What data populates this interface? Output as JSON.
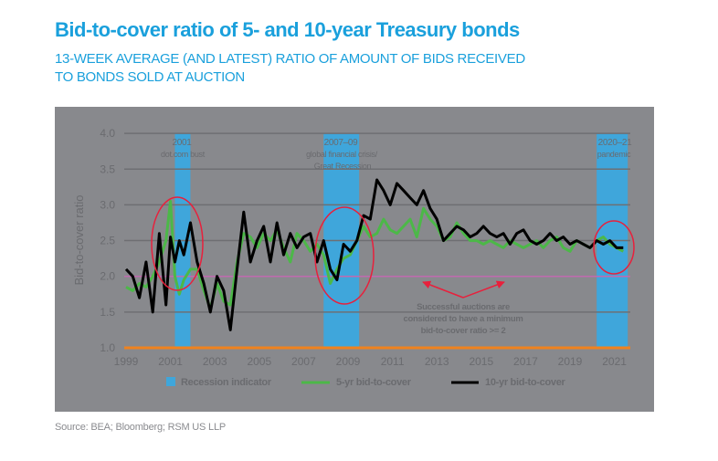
{
  "header": {
    "title": "Bid-to-cover ratio of 5- and 10-year Treasury bonds",
    "subtitle_line1": "13-WEEK AVERAGE (AND LATEST) RATIO OF AMOUNT OF BIDS RECEIVED",
    "subtitle_line2": "TO BONDS SOLD AT AUCTION"
  },
  "footer": {
    "source": "Source: BEA; Bloomberg; RSM US LLP"
  },
  "colors": {
    "panel_bg": "#88898d",
    "recession": "#3fa6db",
    "five_yr": "#4cb848",
    "ten_yr": "#000000",
    "threshold": "#c06ab0",
    "baseline": "#f0821e",
    "ellipse": "#e8203c",
    "title": "#1aa0dc"
  },
  "annotations": {
    "recession_2001_line1": "2001",
    "recession_2001_line2": "dot.com bust",
    "recession_2008_line1": "2007–09",
    "recession_2008_line2": "global financial crisis/",
    "recession_2008_line3": "Great Recession",
    "recession_2020_line1": "2020–21",
    "recession_2020_line2": "pandemic",
    "threshold_note_line1": "Successful auctions are",
    "threshold_note_line2": "considered to have a minimum",
    "threshold_note_line3": "bid-to-cover ratio >= 2"
  },
  "chart_data": {
    "type": "line",
    "title": "Bid-to-cover ratio of 5- and 10-year Treasury bonds",
    "subtitle": "13-week average (and latest) ratio of amount of bids received to bonds sold at auction",
    "xlabel": "",
    "ylabel": "Bid-to-cover ratio",
    "ylim": [
      1.0,
      4.0
    ],
    "yticks": [
      "1.0",
      "1.5",
      "2.0",
      "2.5",
      "3.0",
      "3.5",
      "4.0"
    ],
    "xticks": [
      "1999",
      "2001",
      "2003",
      "2005",
      "2007",
      "2009",
      "2011",
      "2013",
      "2015",
      "2017",
      "2019",
      "2021"
    ],
    "xlim": [
      1999,
      2021.7
    ],
    "grid": true,
    "legend_position": "bottom",
    "legend": [
      "Recession indicator",
      "5-yr bid-to-cover",
      "10-yr bid-to-cover"
    ],
    "recessions": [
      {
        "label": "2001 dot.com bust",
        "start": 2001.2,
        "end": 2001.9
      },
      {
        "label": "2007–09 global financial crisis/Great Recession",
        "start": 2007.9,
        "end": 2009.5
      },
      {
        "label": "2020–21 pandemic",
        "start": 2020.2,
        "end": 2021.6
      }
    ],
    "reference_lines": [
      {
        "label": "Minimum successful bid-to-cover ratio",
        "y": 2.0
      }
    ],
    "series": [
      {
        "name": "5-yr bid-to-cover",
        "x": [
          1999.0,
          1999.3,
          1999.6,
          1999.9,
          2000.2,
          2000.5,
          2000.8,
          2001.0,
          2001.2,
          2001.4,
          2001.6,
          2001.9,
          2002.2,
          2002.5,
          2002.8,
          2003.1,
          2003.4,
          2003.7,
          2004.0,
          2004.3,
          2004.6,
          2004.9,
          2005.2,
          2005.5,
          2005.8,
          2006.1,
          2006.4,
          2006.7,
          2007.0,
          2007.3,
          2007.6,
          2007.9,
          2008.2,
          2008.5,
          2008.8,
          2009.1,
          2009.4,
          2009.7,
          2010.0,
          2010.3,
          2010.6,
          2010.9,
          2011.2,
          2011.5,
          2011.8,
          2012.1,
          2012.4,
          2012.7,
          2013.0,
          2013.3,
          2013.6,
          2013.9,
          2014.2,
          2014.5,
          2014.8,
          2015.1,
          2015.4,
          2015.7,
          2016.0,
          2016.3,
          2016.6,
          2016.9,
          2017.2,
          2017.5,
          2017.8,
          2018.1,
          2018.4,
          2018.7,
          2019.0,
          2019.3,
          2019.6,
          2019.9,
          2020.2,
          2020.5,
          2020.8,
          2021.1,
          2021.4
        ],
        "values": [
          1.85,
          1.8,
          1.9,
          1.85,
          2.0,
          2.2,
          2.5,
          3.05,
          2.0,
          1.75,
          1.95,
          2.1,
          2.1,
          1.8,
          1.55,
          1.9,
          1.65,
          1.6,
          2.2,
          2.6,
          2.55,
          2.4,
          2.6,
          2.5,
          2.65,
          2.4,
          2.2,
          2.6,
          2.5,
          2.35,
          2.45,
          2.3,
          1.9,
          2.1,
          2.25,
          2.3,
          2.5,
          2.7,
          2.55,
          2.6,
          2.8,
          2.65,
          2.6,
          2.7,
          2.8,
          2.55,
          2.95,
          2.8,
          2.7,
          2.5,
          2.55,
          2.75,
          2.6,
          2.5,
          2.5,
          2.45,
          2.5,
          2.45,
          2.4,
          2.5,
          2.45,
          2.4,
          2.45,
          2.5,
          2.4,
          2.5,
          2.55,
          2.4,
          2.35,
          2.5,
          2.45,
          2.4,
          2.5,
          2.55,
          2.45,
          2.4,
          2.35
        ]
      },
      {
        "name": "10-yr bid-to-cover",
        "x": [
          1999.0,
          1999.3,
          1999.6,
          1999.9,
          2000.2,
          2000.5,
          2000.8,
          2001.0,
          2001.2,
          2001.4,
          2001.6,
          2001.9,
          2002.2,
          2002.5,
          2002.8,
          2003.1,
          2003.4,
          2003.7,
          2004.0,
          2004.3,
          2004.6,
          2004.9,
          2005.2,
          2005.5,
          2005.8,
          2006.1,
          2006.4,
          2006.7,
          2007.0,
          2007.3,
          2007.6,
          2007.9,
          2008.2,
          2008.5,
          2008.8,
          2009.1,
          2009.4,
          2009.7,
          2010.0,
          2010.3,
          2010.6,
          2010.9,
          2011.2,
          2011.5,
          2011.8,
          2012.1,
          2012.4,
          2012.7,
          2013.0,
          2013.3,
          2013.6,
          2013.9,
          2014.2,
          2014.5,
          2014.8,
          2015.1,
          2015.4,
          2015.7,
          2016.0,
          2016.3,
          2016.6,
          2016.9,
          2017.2,
          2017.5,
          2017.8,
          2018.1,
          2018.4,
          2018.7,
          2019.0,
          2019.3,
          2019.6,
          2019.9,
          2020.2,
          2020.5,
          2020.8,
          2021.1,
          2021.4
        ],
        "values": [
          2.1,
          2.0,
          1.7,
          2.2,
          1.5,
          2.6,
          1.6,
          2.55,
          2.2,
          2.5,
          2.3,
          2.75,
          2.2,
          1.9,
          1.5,
          2.0,
          1.8,
          1.25,
          2.1,
          2.9,
          2.2,
          2.5,
          2.7,
          2.2,
          2.75,
          2.3,
          2.6,
          2.4,
          2.55,
          2.6,
          2.2,
          2.5,
          2.1,
          1.95,
          2.45,
          2.35,
          2.5,
          2.85,
          2.8,
          3.35,
          3.2,
          3.0,
          3.3,
          3.2,
          3.1,
          3.0,
          3.2,
          2.95,
          2.8,
          2.5,
          2.6,
          2.7,
          2.65,
          2.55,
          2.6,
          2.7,
          2.6,
          2.55,
          2.6,
          2.45,
          2.6,
          2.65,
          2.5,
          2.45,
          2.5,
          2.6,
          2.5,
          2.55,
          2.45,
          2.5,
          2.45,
          2.4,
          2.5,
          2.45,
          2.5,
          2.4,
          2.4
        ]
      }
    ]
  }
}
